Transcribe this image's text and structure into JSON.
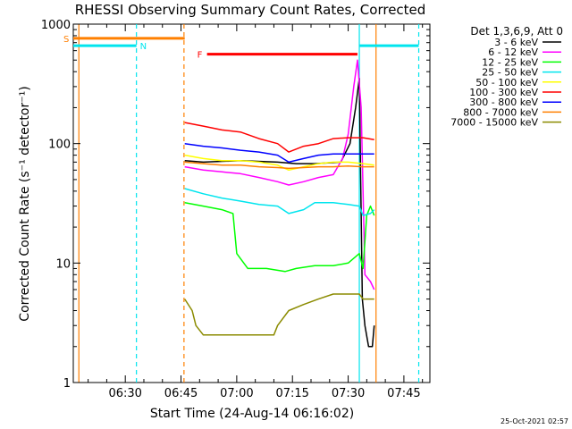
{
  "chart_data": {
    "type": "line",
    "title": "RHESSI Observing Summary Count Rates, Corrected",
    "xlabel": "Start Time (24-Aug-14 06:16:02)",
    "ylabel": "Corrected Count Rate (s⁻¹ detector⁻¹)",
    "y_scale": "log",
    "ylim": [
      1,
      1000
    ],
    "y_ticks": [
      {
        "value": 1,
        "label": "1"
      },
      {
        "value": 10,
        "label": "10"
      },
      {
        "value": 100,
        "label": "100"
      },
      {
        "value": 1000,
        "label": "1000"
      }
    ],
    "x_unit": "minutes after 06:16:02",
    "xlim": [
      0,
      96
    ],
    "x_ticks": [
      {
        "value": 14,
        "label": "06:30"
      },
      {
        "value": 29,
        "label": "06:45"
      },
      {
        "value": 44,
        "label": "07:00"
      },
      {
        "value": 59,
        "label": "07:15"
      },
      {
        "value": 74,
        "label": "07:30"
      },
      {
        "value": 89,
        "label": "07:45"
      }
    ],
    "legend_title": "Det 1,3,6,9, Att 0",
    "legend_position": "right",
    "timestamp": "25-Oct-2021 02:57",
    "flags": [
      {
        "label": "S",
        "color": "#ff7f00",
        "x_start": 0,
        "x_end": 30,
        "y": 760
      },
      {
        "label": "N",
        "color": "#00e5ee",
        "x_start": 0,
        "x_end": 17,
        "y": 660
      },
      {
        "label": "F",
        "color": "#ff0000",
        "x_start": 36,
        "x_end": 76.5,
        "y": 560
      },
      {
        "label": "",
        "color": "#00e5ee",
        "x_start": 77,
        "x_end": 93,
        "y": 660
      }
    ],
    "vlines": [
      {
        "x": 1.5,
        "color": "#ff7f00",
        "dashed": false
      },
      {
        "x": 17,
        "color": "#00e5ee",
        "dashed": true
      },
      {
        "x": 29.8,
        "color": "#ff7f00",
        "dashed": true
      },
      {
        "x": 77,
        "color": "#00e5ee",
        "dashed": false
      },
      {
        "x": 81.5,
        "color": "#ff7f00",
        "dashed": false
      },
      {
        "x": 93,
        "color": "#00e5ee",
        "dashed": true
      }
    ],
    "series": [
      {
        "name": "3 - 6 keV",
        "color": "#000000",
        "points": [
          [
            30,
            72
          ],
          [
            35,
            70
          ],
          [
            45,
            72
          ],
          [
            55,
            70
          ],
          [
            60,
            68
          ],
          [
            65,
            68
          ],
          [
            72,
            70
          ],
          [
            74.5,
            100
          ],
          [
            76,
            200
          ],
          [
            77,
            350
          ],
          [
            77.8,
            5
          ],
          [
            78.5,
            3
          ],
          [
            79.5,
            2
          ],
          [
            80.5,
            2
          ],
          [
            81,
            3
          ]
        ]
      },
      {
        "name": "6 - 12 keV",
        "color": "#ff00ff",
        "points": [
          [
            30,
            64
          ],
          [
            35,
            60
          ],
          [
            40,
            58
          ],
          [
            45,
            56
          ],
          [
            50,
            52
          ],
          [
            55,
            48
          ],
          [
            58,
            45
          ],
          [
            62,
            48
          ],
          [
            66,
            52
          ],
          [
            70,
            55
          ],
          [
            72.5,
            75
          ],
          [
            74,
            120
          ],
          [
            75.5,
            300
          ],
          [
            76.5,
            500
          ],
          [
            77.5,
            200
          ],
          [
            78.5,
            8
          ],
          [
            80,
            7
          ],
          [
            81,
            6
          ]
        ]
      },
      {
        "name": "12 - 25 keV",
        "color": "#00ff00",
        "points": [
          [
            30,
            32
          ],
          [
            35,
            30
          ],
          [
            40,
            28
          ],
          [
            43,
            26
          ],
          [
            44,
            12
          ],
          [
            47,
            9
          ],
          [
            52,
            9
          ],
          [
            57,
            8.5
          ],
          [
            60,
            9
          ],
          [
            65,
            9.5
          ],
          [
            70,
            9.5
          ],
          [
            74,
            10
          ],
          [
            77,
            12
          ],
          [
            78,
            9
          ],
          [
            79,
            25
          ],
          [
            80,
            30
          ],
          [
            81,
            25
          ]
        ]
      },
      {
        "name": "25 - 50 keV",
        "color": "#00e5ee",
        "points": [
          [
            30,
            42
          ],
          [
            35,
            38
          ],
          [
            40,
            35
          ],
          [
            45,
            33
          ],
          [
            50,
            31
          ],
          [
            55,
            30
          ],
          [
            58,
            26
          ],
          [
            62,
            28
          ],
          [
            65,
            32
          ],
          [
            70,
            32
          ],
          [
            74,
            31
          ],
          [
            77,
            30
          ],
          [
            78,
            25
          ],
          [
            80,
            26
          ],
          [
            81,
            28
          ]
        ]
      },
      {
        "name": "50 - 100 keV",
        "color": "#ffff00",
        "points": [
          [
            30,
            80
          ],
          [
            35,
            75
          ],
          [
            40,
            72
          ],
          [
            45,
            72
          ],
          [
            50,
            70
          ],
          [
            55,
            66
          ],
          [
            58,
            60
          ],
          [
            62,
            64
          ],
          [
            66,
            68
          ],
          [
            70,
            70
          ],
          [
            74,
            70
          ],
          [
            78,
            68
          ],
          [
            81,
            66
          ]
        ]
      },
      {
        "name": "100 - 300 keV",
        "color": "#ff0000",
        "points": [
          [
            30,
            150
          ],
          [
            35,
            140
          ],
          [
            40,
            130
          ],
          [
            45,
            125
          ],
          [
            50,
            110
          ],
          [
            55,
            100
          ],
          [
            58,
            85
          ],
          [
            62,
            95
          ],
          [
            66,
            100
          ],
          [
            70,
            110
          ],
          [
            74,
            112
          ],
          [
            78,
            112
          ],
          [
            81,
            108
          ]
        ]
      },
      {
        "name": "300 - 800 keV",
        "color": "#0000ff",
        "points": [
          [
            30,
            100
          ],
          [
            35,
            95
          ],
          [
            40,
            92
          ],
          [
            45,
            88
          ],
          [
            50,
            85
          ],
          [
            55,
            80
          ],
          [
            58,
            70
          ],
          [
            62,
            75
          ],
          [
            66,
            80
          ],
          [
            70,
            82
          ],
          [
            74,
            82
          ],
          [
            78,
            82
          ],
          [
            81,
            82
          ]
        ]
      },
      {
        "name": "800 - 7000 keV",
        "color": "#ff7f00",
        "points": [
          [
            30,
            70
          ],
          [
            35,
            68
          ],
          [
            40,
            66
          ],
          [
            45,
            66
          ],
          [
            50,
            64
          ],
          [
            55,
            63
          ],
          [
            58,
            62
          ],
          [
            62,
            63
          ],
          [
            66,
            64
          ],
          [
            70,
            64
          ],
          [
            74,
            65
          ],
          [
            78,
            64
          ],
          [
            81,
            64
          ]
        ]
      },
      {
        "name": "7000 - 15000 keV",
        "color": "#8b8b00",
        "points": [
          [
            30,
            5
          ],
          [
            32,
            4
          ],
          [
            33,
            3
          ],
          [
            35,
            2.5
          ],
          [
            40,
            2.5
          ],
          [
            45,
            2.5
          ],
          [
            50,
            2.5
          ],
          [
            54,
            2.5
          ],
          [
            55,
            3
          ],
          [
            58,
            4
          ],
          [
            62,
            4.5
          ],
          [
            66,
            5
          ],
          [
            70,
            5.5
          ],
          [
            74,
            5.5
          ],
          [
            77,
            5.5
          ],
          [
            78,
            5
          ],
          [
            80,
            5
          ],
          [
            81,
            5
          ]
        ]
      }
    ]
  }
}
